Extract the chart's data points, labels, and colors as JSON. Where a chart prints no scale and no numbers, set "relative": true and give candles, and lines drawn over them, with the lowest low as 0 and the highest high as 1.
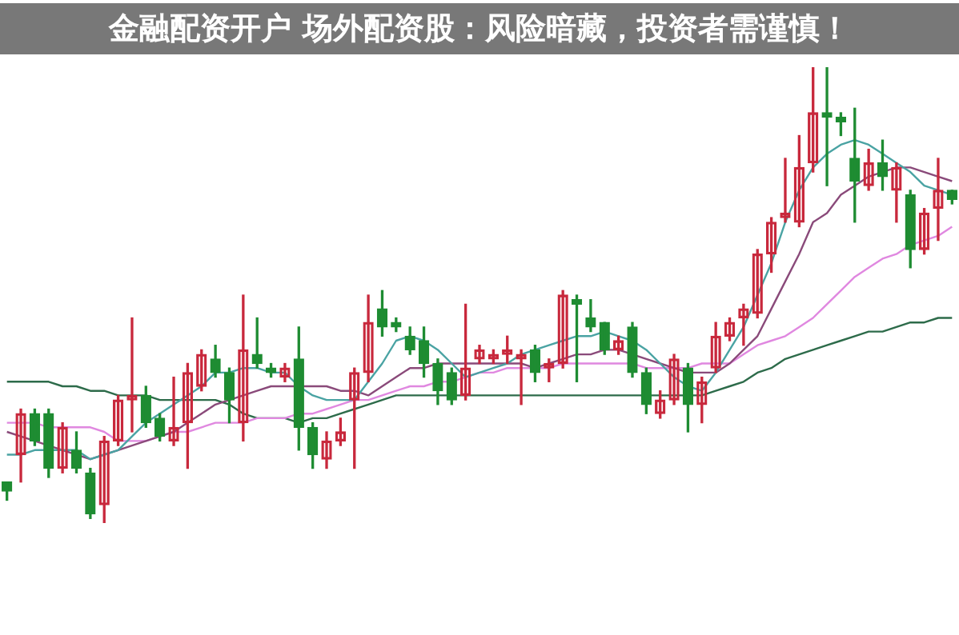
{
  "chart_data": {
    "type": "candlestick",
    "title": "金融配资开户 场外配资股：风险暗藏，投资者需谨慎！",
    "relative": true,
    "legend": false,
    "categories": [
      null,
      null,
      null,
      null,
      null,
      null,
      null,
      null,
      null,
      null,
      null,
      null,
      null,
      null,
      null,
      null,
      null,
      null,
      null,
      null,
      null,
      null,
      null,
      null,
      null,
      null,
      null,
      null,
      null,
      null,
      null,
      null,
      null,
      null,
      null,
      null,
      null,
      null,
      null,
      null,
      null,
      null,
      null,
      null,
      null,
      null,
      null,
      null,
      null,
      null,
      null,
      null,
      null,
      null,
      null,
      null,
      null,
      null,
      null,
      null,
      null,
      null,
      null,
      null,
      null,
      null,
      null,
      null,
      null
    ],
    "ohlc": [
      [
        0.09,
        0.09,
        0.05,
        0.07
      ],
      [
        0.15,
        0.25,
        0.09,
        0.24
      ],
      [
        0.24,
        0.25,
        0.17,
        0.18
      ],
      [
        0.24,
        0.25,
        0.1,
        0.12
      ],
      [
        0.12,
        0.22,
        0.11,
        0.21
      ],
      [
        0.16,
        0.2,
        0.11,
        0.12
      ],
      [
        0.11,
        0.12,
        0.01,
        0.02
      ],
      [
        0.04,
        0.19,
        0,
        0.18
      ],
      [
        0.18,
        0.28,
        0.17,
        0.27
      ],
      [
        0.27,
        0.45,
        0.2,
        0.28
      ],
      [
        0.28,
        0.3,
        0.21,
        0.22
      ],
      [
        0.23,
        0.24,
        0.18,
        0.19
      ],
      [
        0.18,
        0.32,
        0.17,
        0.21
      ],
      [
        0.22,
        0.35,
        0.12,
        0.33
      ],
      [
        0.3,
        0.38,
        0.29,
        0.37
      ],
      [
        0.36,
        0.39,
        0.32,
        0.33
      ],
      [
        0.33,
        0.34,
        0.22,
        0.27
      ],
      [
        0.22,
        0.5,
        0.18,
        0.38
      ],
      [
        0.37,
        0.45,
        0.34,
        0.35
      ],
      [
        0.34,
        0.35,
        0.32,
        0.33
      ],
      [
        0.32,
        0.35,
        0.31,
        0.34
      ],
      [
        0.36,
        0.43,
        0.16,
        0.21
      ],
      [
        0.21,
        0.22,
        0.12,
        0.15
      ],
      [
        0.14,
        0.2,
        0.12,
        0.18
      ],
      [
        0.18,
        0.23,
        0.17,
        0.2
      ],
      [
        0.27,
        0.34,
        0.12,
        0.33
      ],
      [
        0.33,
        0.5,
        0.31,
        0.44
      ],
      [
        0.47,
        0.51,
        0.41,
        0.43
      ],
      [
        0.44,
        0.45,
        0.42,
        0.43
      ],
      [
        0.41,
        0.43,
        0.37,
        0.38
      ],
      [
        0.4,
        0.43,
        0.32,
        0.35
      ],
      [
        0.35,
        0.36,
        0.26,
        0.29
      ],
      [
        0.33,
        0.34,
        0.26,
        0.27
      ],
      [
        0.28,
        0.48,
        0.27,
        0.34
      ],
      [
        0.36,
        0.39,
        0.35,
        0.38
      ],
      [
        0.36,
        0.38,
        0.35,
        0.37
      ],
      [
        0.37,
        0.41,
        0.35,
        0.38
      ],
      [
        0.36,
        0.38,
        0.26,
        0.37
      ],
      [
        0.38,
        0.39,
        0.31,
        0.33
      ],
      [
        0.34,
        0.36,
        0.31,
        0.35
      ],
      [
        0.35,
        0.51,
        0.34,
        0.5
      ],
      [
        0.49,
        0.5,
        0.31,
        0.48
      ],
      [
        0.45,
        0.49,
        0.42,
        0.43
      ],
      [
        0.44,
        0.44,
        0.37,
        0.38
      ],
      [
        0.38,
        0.41,
        0.37,
        0.4
      ],
      [
        0.43,
        0.44,
        0.32,
        0.33
      ],
      [
        0.33,
        0.34,
        0.24,
        0.26
      ],
      [
        0.24,
        0.29,
        0.23,
        0.27
      ],
      [
        0.27,
        0.37,
        0.26,
        0.36
      ],
      [
        0.34,
        0.35,
        0.2,
        0.26
      ],
      [
        0.26,
        0.32,
        0.22,
        0.31
      ],
      [
        0.34,
        0.44,
        0.33,
        0.41
      ],
      [
        0.41,
        0.45,
        0.4,
        0.44
      ],
      [
        0.45,
        0.48,
        0.39,
        0.47
      ],
      [
        0.46,
        0.6,
        0.45,
        0.59
      ],
      [
        0.59,
        0.67,
        0.55,
        0.66
      ],
      [
        0.67,
        0.8,
        0.66,
        0.68
      ],
      [
        0.66,
        0.85,
        0.65,
        0.78
      ],
      [
        0.79,
        1.0,
        0.77,
        0.9
      ],
      [
        0.9,
        1.0,
        0.74,
        0.89
      ],
      [
        0.89,
        0.9,
        0.85,
        0.88
      ],
      [
        0.8,
        0.91,
        0.66,
        0.75
      ],
      [
        0.74,
        0.82,
        0.73,
        0.79
      ],
      [
        0.79,
        0.84,
        0.73,
        0.76
      ],
      [
        0.73,
        0.79,
        0.66,
        0.78
      ],
      [
        0.72,
        0.73,
        0.56,
        0.6
      ],
      [
        0.6,
        0.69,
        0.59,
        0.68
      ],
      [
        0.69,
        0.8,
        0.62,
        0.73
      ],
      [
        0.73,
        0.73,
        0.7,
        0.71
      ]
    ],
    "series": [
      {
        "type": "line",
        "color": "#4aa3a3",
        "values": [
          0.15,
          0.15,
          0.16,
          0.16,
          0.16,
          0.16,
          0.14,
          0.15,
          0.16,
          0.19,
          0.22,
          0.24,
          0.26,
          0.28,
          0.3,
          0.33,
          0.33,
          0.34,
          0.34,
          0.33,
          0.33,
          0.3,
          0.28,
          0.27,
          0.27,
          0.27,
          0.31,
          0.35,
          0.4,
          0.41,
          0.4,
          0.38,
          0.35,
          0.32,
          0.33,
          0.34,
          0.35,
          0.37,
          0.38,
          0.39,
          0.4,
          0.41,
          0.41,
          0.42,
          0.41,
          0.4,
          0.38,
          0.35,
          0.32,
          0.3,
          0.29,
          0.33,
          0.38,
          0.43,
          0.5,
          0.57,
          0.66,
          0.73,
          0.78,
          0.81,
          0.83,
          0.84,
          0.83,
          0.81,
          0.79,
          0.77,
          0.74,
          0.73,
          0.72
        ]
      },
      {
        "type": "line",
        "color": "#8a4a7a",
        "values": [
          0.2,
          0.19,
          0.18,
          0.17,
          0.16,
          0.15,
          0.14,
          0.15,
          0.16,
          0.17,
          0.18,
          0.19,
          0.2,
          0.22,
          0.24,
          0.26,
          0.27,
          0.28,
          0.29,
          0.3,
          0.3,
          0.3,
          0.3,
          0.3,
          0.29,
          0.29,
          0.28,
          0.3,
          0.32,
          0.34,
          0.34,
          0.35,
          0.35,
          0.35,
          0.35,
          0.35,
          0.35,
          0.35,
          0.34,
          0.35,
          0.36,
          0.37,
          0.37,
          0.38,
          0.38,
          0.37,
          0.36,
          0.35,
          0.34,
          0.33,
          0.33,
          0.33,
          0.35,
          0.38,
          0.41,
          0.47,
          0.53,
          0.59,
          0.66,
          0.68,
          0.72,
          0.74,
          0.76,
          0.77,
          0.78,
          0.78,
          0.77,
          0.76,
          0.75
        ]
      },
      {
        "type": "line",
        "color": "#e088e0",
        "values": [
          0.22,
          0.22,
          0.22,
          0.21,
          0.21,
          0.21,
          0.21,
          0.2,
          0.18,
          0.18,
          0.18,
          0.19,
          0.2,
          0.2,
          0.21,
          0.22,
          0.22,
          0.22,
          0.23,
          0.23,
          0.23,
          0.24,
          0.24,
          0.25,
          0.26,
          0.27,
          0.27,
          0.28,
          0.29,
          0.3,
          0.3,
          0.31,
          0.31,
          0.32,
          0.33,
          0.33,
          0.34,
          0.34,
          0.34,
          0.34,
          0.35,
          0.35,
          0.35,
          0.35,
          0.35,
          0.35,
          0.34,
          0.34,
          0.34,
          0.34,
          0.35,
          0.35,
          0.35,
          0.37,
          0.39,
          0.4,
          0.41,
          0.43,
          0.45,
          0.48,
          0.51,
          0.54,
          0.56,
          0.58,
          0.59,
          0.61,
          0.62,
          0.63,
          0.65
        ]
      },
      {
        "type": "line",
        "color": "#2d6b4a",
        "values": [
          0.31,
          0.31,
          0.31,
          0.31,
          0.3,
          0.3,
          0.29,
          0.29,
          0.28,
          0.28,
          0.28,
          0.27,
          0.27,
          0.27,
          0.27,
          0.27,
          0.26,
          0.24,
          0.23,
          0.23,
          0.23,
          0.22,
          0.23,
          0.23,
          0.24,
          0.25,
          0.26,
          0.27,
          0.28,
          0.28,
          0.28,
          0.28,
          0.28,
          0.28,
          0.28,
          0.28,
          0.28,
          0.28,
          0.28,
          0.28,
          0.28,
          0.28,
          0.28,
          0.28,
          0.28,
          0.28,
          0.28,
          0.28,
          0.28,
          0.28,
          0.28,
          0.29,
          0.3,
          0.31,
          0.33,
          0.34,
          0.36,
          0.37,
          0.38,
          0.39,
          0.4,
          0.41,
          0.42,
          0.42,
          0.43,
          0.44,
          0.44,
          0.45,
          0.45
        ]
      }
    ]
  }
}
